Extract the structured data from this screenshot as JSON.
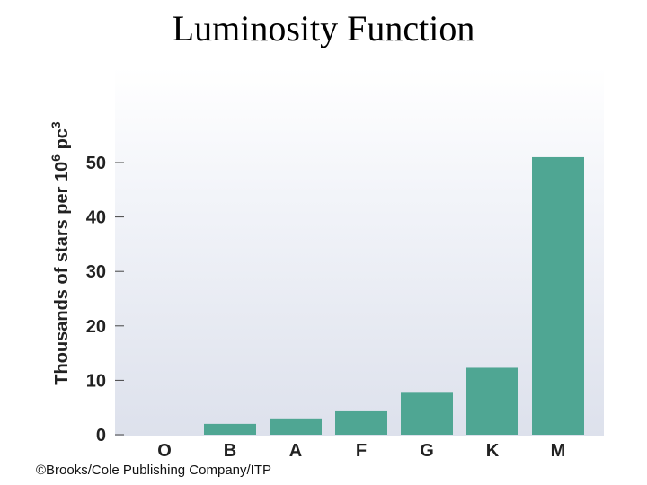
{
  "page": {
    "title": "Luminosity Function",
    "credit": "©Brooks/Cole Publishing Company/ITP"
  },
  "chart_data": {
    "type": "bar",
    "title": "Luminosity Function",
    "ylabel": "Thousands of stars per 10^6 pc^3",
    "ylabel_parts": {
      "main": "Thousands of stars per 10",
      "exp1": "6",
      "unit": " pc",
      "exp2": "3"
    },
    "xlabel": "",
    "categories": [
      "O",
      "B",
      "A",
      "F",
      "G",
      "K",
      "M"
    ],
    "values": [
      0,
      2,
      3,
      4.3,
      7.7,
      12.3,
      51
    ],
    "ylim": [
      0,
      50
    ],
    "yticks": [
      0,
      10,
      20,
      30,
      40,
      50
    ],
    "bar_color": "#4fa693",
    "grid": false
  }
}
